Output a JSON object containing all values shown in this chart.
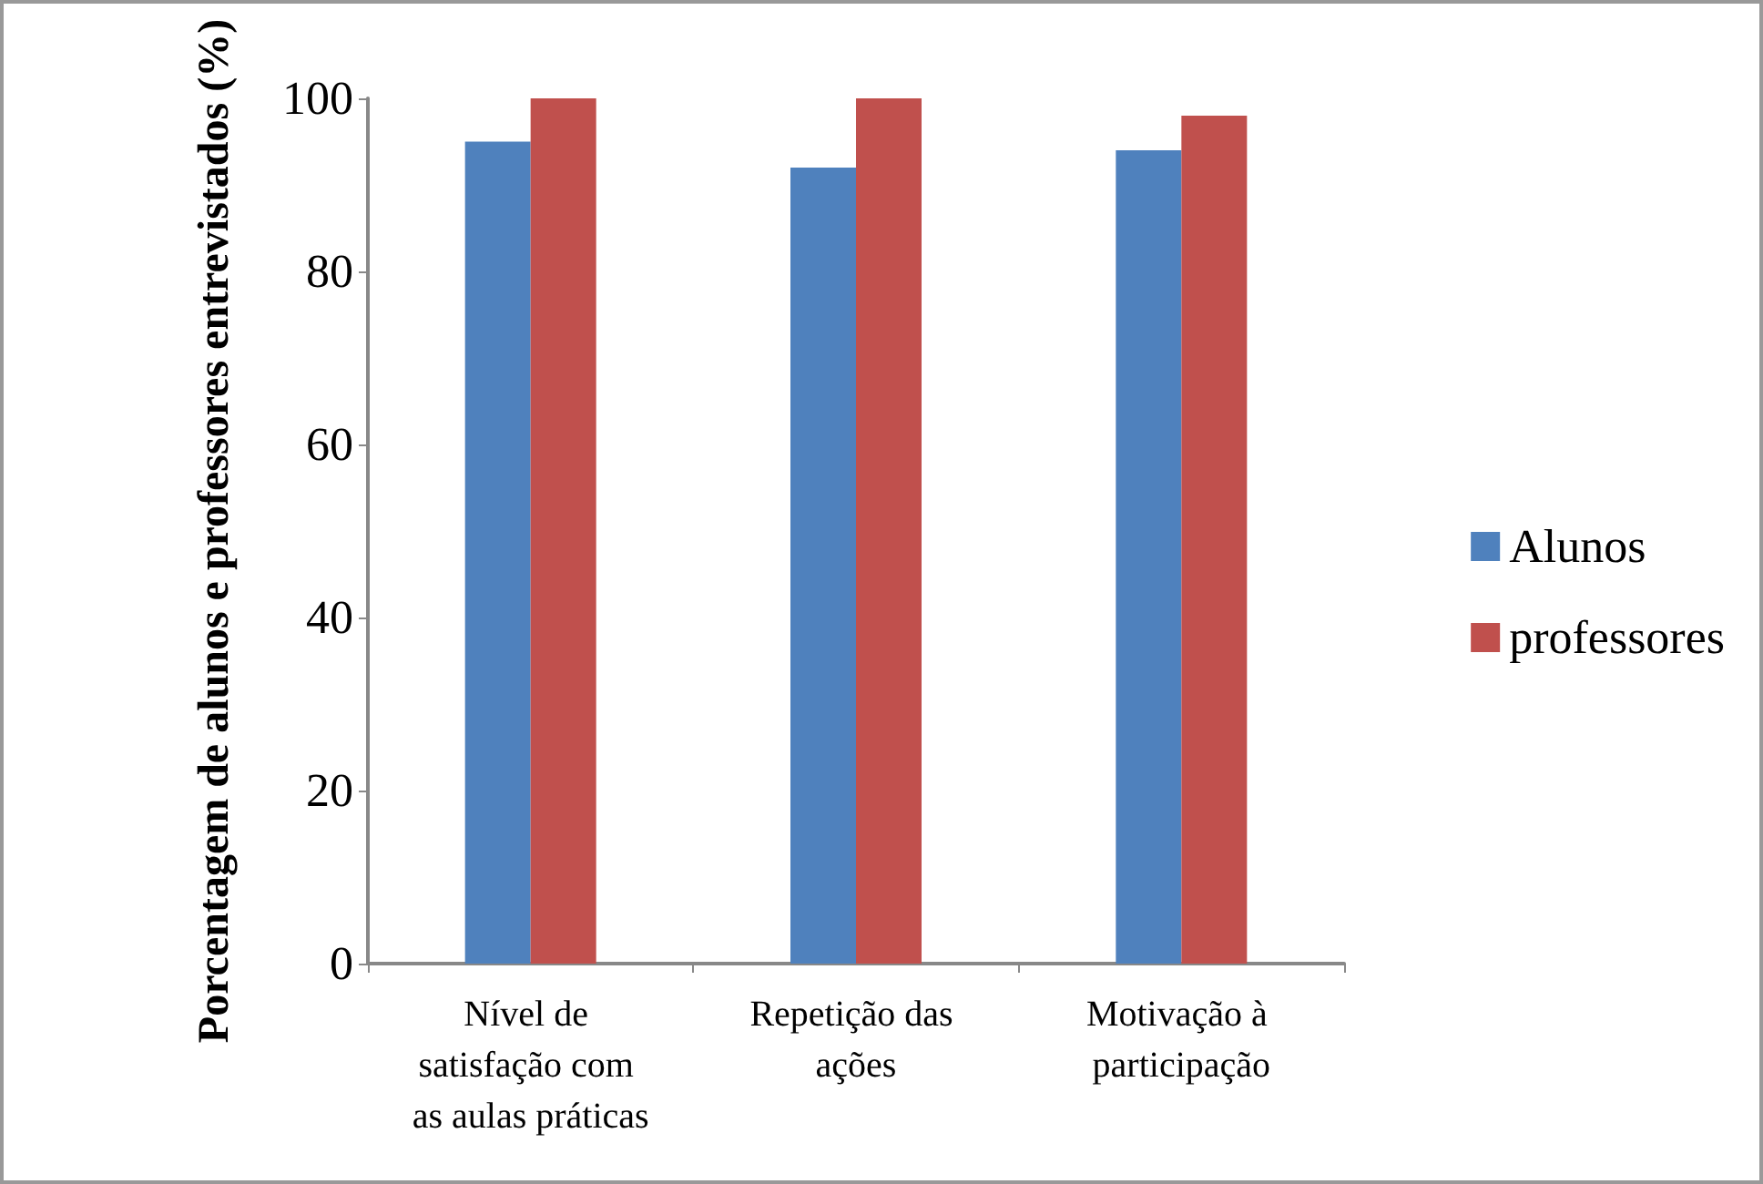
{
  "chart_data": {
    "type": "bar",
    "ylabel": "Porcentagem de alunos e professores entrevistados (%)",
    "categories": [
      "Nível de satisfação com as aulas práticas",
      "Repetição das ações",
      "Motivação à participação"
    ],
    "series": [
      {
        "name": "Alunos",
        "color": "#4f81bd",
        "values": [
          95,
          92,
          94
        ]
      },
      {
        "name": "professores",
        "color": "#c0504d",
        "values": [
          100,
          100,
          98
        ]
      }
    ],
    "ylim": [
      0,
      100
    ],
    "yticks": [
      0,
      20,
      40,
      60,
      80,
      100
    ],
    "grid": false,
    "legend": "right"
  }
}
